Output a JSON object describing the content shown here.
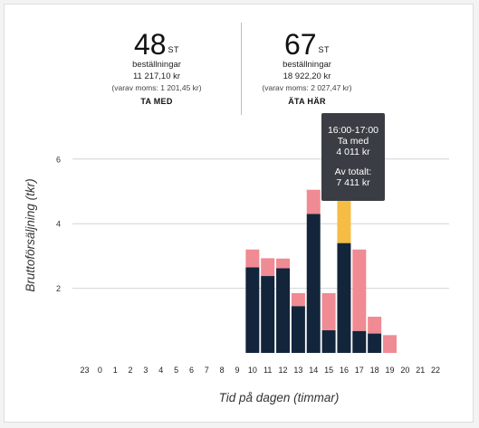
{
  "stats": [
    {
      "count": "48",
      "unit": "ST",
      "line1": "beställningar",
      "line2": "11 217,10 kr",
      "line3": "(varav moms: 1 201,45 kr)",
      "label": "TA MED"
    },
    {
      "count": "67",
      "unit": "ST",
      "line1": "beställningar",
      "line2": "18 922,20 kr",
      "line3": "(varav moms: 2 027,47 kr)",
      "label": "ÄTA HÄR"
    }
  ],
  "tooltip": {
    "time": "16:00-17:00",
    "series": "Ta med",
    "value": "4 011 kr",
    "total_label": "Av totalt:",
    "total_value": "7 411 kr"
  },
  "chart_data": {
    "type": "bar",
    "stacked": true,
    "xlabel": "Tid på dagen (timmar)",
    "ylabel": "Bruttoförsäljning (tkr)",
    "categories": [
      "23",
      "0",
      "1",
      "2",
      "3",
      "4",
      "5",
      "6",
      "7",
      "8",
      "9",
      "10",
      "11",
      "12",
      "13",
      "14",
      "15",
      "16",
      "17",
      "18",
      "19",
      "20",
      "21",
      "22"
    ],
    "ylim": [
      0,
      6.5
    ],
    "yticks": [
      2,
      4,
      6
    ],
    "grid": true,
    "series": [
      {
        "values": [
          0,
          0,
          0,
          0,
          0,
          0,
          0,
          0,
          0,
          0,
          0,
          2.65,
          2.38,
          2.62,
          1.45,
          4.3,
          0.7,
          3.4,
          0.68,
          0.6,
          0,
          0,
          0,
          0
        ],
        "color": "#13253b"
      },
      {
        "values": [
          0,
          0,
          0,
          0,
          0,
          0,
          0,
          0,
          0,
          0,
          0,
          0.55,
          0.55,
          0.3,
          0.4,
          0.75,
          1.15,
          4.01,
          2.52,
          0.52,
          0.55,
          0,
          0,
          0
        ],
        "color": "#f08a93"
      }
    ],
    "highlight": {
      "category": "16",
      "series_index": 1,
      "color": "#f5bd43"
    }
  }
}
